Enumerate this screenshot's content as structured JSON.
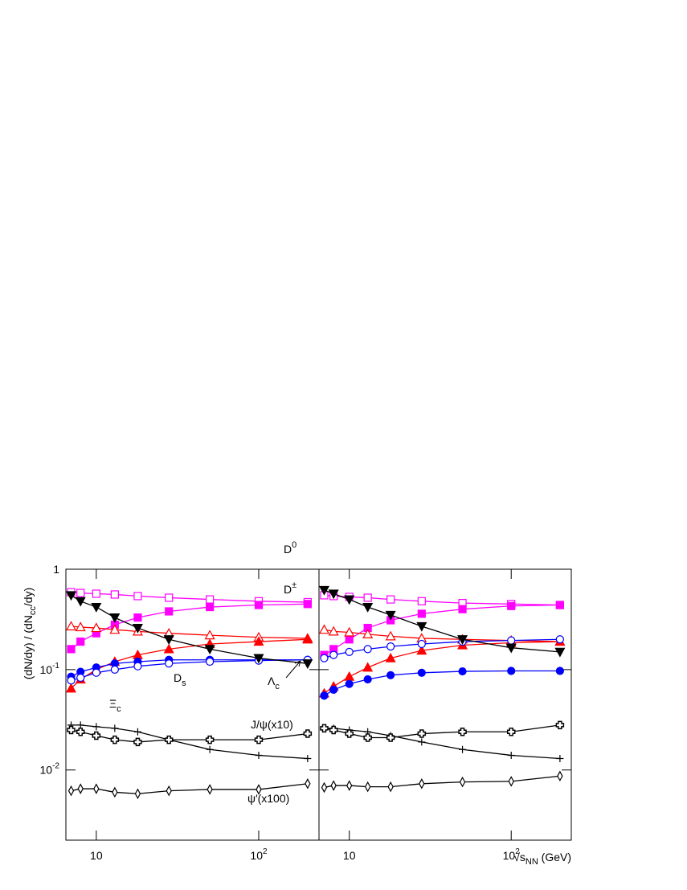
{
  "chart_data": [
    {
      "type": "line",
      "log_x": true,
      "log_y": true,
      "ylabel": {
        "parts": [
          "(dN/dy) / (dN",
          "cc",
          "/dy)"
        ]
      },
      "x": [
        7,
        8,
        10,
        13,
        18,
        28,
        50,
        100,
        200
      ],
      "xlim": [
        6.5,
        235
      ],
      "ylim": [
        0.002,
        1
      ],
      "xticks": [
        10,
        {
          "value": 100,
          "label": "10",
          "sup": "2"
        }
      ],
      "yticks": [
        1,
        {
          "value": 0.1,
          "label": "10",
          "sup": "-1"
        },
        {
          "value": 0.01,
          "label": "10",
          "sup": "-2"
        }
      ],
      "annotations": [
        {
          "base": "D",
          "sup": "0"
        },
        {
          "base": "D",
          "sup": "±"
        },
        {
          "base": "D",
          "sub": "s"
        },
        {
          "base": "Λ",
          "sub": "c"
        },
        {
          "base": "Ξ",
          "sub": "c"
        },
        {
          "base": "J/ψ(x10)"
        },
        {
          "base": "ψ′(x100)"
        }
      ],
      "series": [
        {
          "color": "#ff00ff",
          "marker": "square",
          "filled": false,
          "values": [
            0.59,
            0.58,
            0.57,
            0.56,
            0.54,
            0.52,
            0.5,
            0.48,
            0.47
          ]
        },
        {
          "color": "#ff00ff",
          "marker": "square",
          "filled": true,
          "values": [
            0.16,
            0.19,
            0.23,
            0.28,
            0.33,
            0.38,
            0.42,
            0.44,
            0.45
          ]
        },
        {
          "color": "#ff0000",
          "marker": "triangle",
          "filled": false,
          "values": [
            0.27,
            0.265,
            0.26,
            0.25,
            0.24,
            0.23,
            0.22,
            0.21,
            0.205
          ]
        },
        {
          "color": "#ff0000",
          "marker": "triangle",
          "filled": true,
          "values": [
            0.065,
            0.08,
            0.1,
            0.12,
            0.14,
            0.16,
            0.18,
            0.19,
            0.2
          ]
        },
        {
          "color": "#0000ff",
          "marker": "circle",
          "filled": true,
          "values": [
            0.085,
            0.095,
            0.105,
            0.115,
            0.12,
            0.125,
            0.125,
            0.125,
            0.125
          ]
        },
        {
          "color": "#0000ff",
          "marker": "circle",
          "filled": false,
          "values": [
            0.078,
            0.083,
            0.093,
            0.1,
            0.108,
            0.115,
            0.12,
            0.123,
            0.125
          ]
        },
        {
          "color": "#000000",
          "marker": "tridown",
          "filled": true,
          "values": [
            0.55,
            0.48,
            0.42,
            0.33,
            0.26,
            0.2,
            0.16,
            0.13,
            0.115
          ]
        },
        {
          "color": "#000000",
          "marker": "plus",
          "filled": false,
          "values": [
            0.028,
            0.028,
            0.027,
            0.026,
            0.024,
            0.02,
            0.016,
            0.014,
            0.013
          ]
        },
        {
          "color": "#000000",
          "marker": "crosssquare",
          "filled": false,
          "values": [
            0.025,
            0.024,
            0.022,
            0.02,
            0.019,
            0.02,
            0.02,
            0.02,
            0.023
          ]
        },
        {
          "color": "#000000",
          "marker": "diamond",
          "filled": false,
          "values": [
            0.0062,
            0.0065,
            0.0065,
            0.006,
            0.0058,
            0.0062,
            0.0064,
            0.0064,
            0.0073
          ]
        }
      ]
    },
    {
      "type": "line",
      "log_x": true,
      "log_y": true,
      "xlabel": {
        "parts": [
          "√s",
          "NN",
          " (GeV)"
        ]
      },
      "x": [
        7,
        8,
        10,
        13,
        18,
        28,
        50,
        100,
        200
      ],
      "xlim": [
        6.5,
        235
      ],
      "ylim": [
        0.002,
        1
      ],
      "xticks": [
        10,
        {
          "value": 100,
          "label": "10",
          "sup": "2"
        }
      ],
      "series": [
        {
          "color": "#ff00ff",
          "marker": "square",
          "filled": false,
          "values": [
            0.55,
            0.54,
            0.53,
            0.52,
            0.5,
            0.48,
            0.46,
            0.45,
            0.44
          ]
        },
        {
          "color": "#ff00ff",
          "marker": "square",
          "filled": true,
          "values": [
            0.14,
            0.16,
            0.2,
            0.26,
            0.31,
            0.36,
            0.4,
            0.43,
            0.44
          ]
        },
        {
          "color": "#ff0000",
          "marker": "triangle",
          "filled": false,
          "values": [
            0.25,
            0.24,
            0.235,
            0.225,
            0.215,
            0.205,
            0.2,
            0.195,
            0.19
          ]
        },
        {
          "color": "#ff0000",
          "marker": "triangle",
          "filled": true,
          "values": [
            0.058,
            0.068,
            0.085,
            0.105,
            0.13,
            0.155,
            0.175,
            0.185,
            0.19
          ]
        },
        {
          "color": "#0000ff",
          "marker": "circle",
          "filled": true,
          "values": [
            0.055,
            0.063,
            0.072,
            0.08,
            0.088,
            0.093,
            0.096,
            0.097,
            0.097
          ]
        },
        {
          "color": "#0000ff",
          "marker": "circle",
          "filled": false,
          "values": [
            0.13,
            0.14,
            0.15,
            0.16,
            0.17,
            0.18,
            0.19,
            0.195,
            0.2
          ]
        },
        {
          "color": "#000000",
          "marker": "tridown",
          "filled": true,
          "values": [
            0.62,
            0.57,
            0.5,
            0.42,
            0.35,
            0.27,
            0.2,
            0.165,
            0.15
          ]
        },
        {
          "color": "#000000",
          "marker": "plus",
          "filled": false,
          "values": [
            0.026,
            0.026,
            0.025,
            0.024,
            0.022,
            0.019,
            0.016,
            0.014,
            0.013
          ]
        },
        {
          "color": "#000000",
          "marker": "crosssquare",
          "filled": false,
          "values": [
            0.026,
            0.025,
            0.023,
            0.021,
            0.021,
            0.023,
            0.024,
            0.024,
            0.028
          ]
        },
        {
          "color": "#000000",
          "marker": "diamond",
          "filled": false,
          "values": [
            0.0067,
            0.007,
            0.007,
            0.0068,
            0.0068,
            0.0073,
            0.0076,
            0.0077,
            0.0087
          ]
        }
      ]
    }
  ]
}
